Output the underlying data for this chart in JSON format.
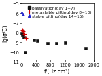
{
  "title": "",
  "xlabel": "f/(Hz·cm²)",
  "ylabel": "lg(σ/C)",
  "xlim": [
    -50,
    2000
  ],
  "ylim": [
    -11,
    -5
  ],
  "yticks": [
    -11,
    -10,
    -9,
    -8,
    -7,
    -6,
    -5
  ],
  "xticks": [
    0,
    400,
    800,
    1200,
    1600,
    2000
  ],
  "passivation": {
    "x": [
      10,
      30,
      60,
      100,
      350,
      430,
      720,
      970,
      1200,
      1780
    ],
    "y": [
      -8.05,
      -8.2,
      -8.5,
      -10.05,
      -8.8,
      -8.85,
      -9.1,
      -9.1,
      -9.05,
      -9.6
    ],
    "color": "#111111",
    "marker": "s",
    "label": "passivation(day 1~7)"
  },
  "metastable": {
    "x": [
      15,
      45,
      80,
      120
    ],
    "y": [
      -7.75,
      -7.9,
      -8.15,
      -8.55
    ],
    "color": "#cc0000",
    "marker": "+",
    "label": "metastable pitting(day 8~13)"
  },
  "stable": {
    "x": [
      12,
      45
    ],
    "y": [
      -5.9,
      -6.1
    ],
    "color": "#2222cc",
    "marker": "^",
    "label": "stable pitting(day 14~15)"
  },
  "background_color": "#ffffff",
  "legend_fontsize": 4.2,
  "axis_fontsize": 5.5,
  "tick_fontsize": 4.8
}
